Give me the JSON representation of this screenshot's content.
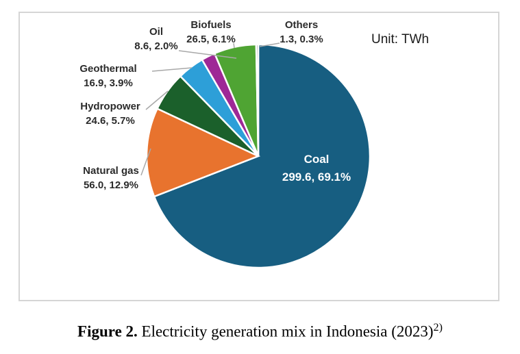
{
  "chart_data": {
    "type": "pie",
    "title": "",
    "unit_label": "Unit: TWh",
    "start_angle_deg": 0,
    "direction": "clockwise",
    "slices": [
      {
        "label": "Coal",
        "value": 299.6,
        "pct": 69.1,
        "display": "299.6, 69.1%",
        "color": "#175E81"
      },
      {
        "label": "Natural gas",
        "value": 56.0,
        "pct": 12.9,
        "display": "56.0, 12.9%",
        "color": "#E8732E"
      },
      {
        "label": "Hydropower",
        "value": 24.6,
        "pct": 5.7,
        "display": "24.6, 5.7%",
        "color": "#1B602B"
      },
      {
        "label": "Geothermal",
        "value": 16.9,
        "pct": 3.9,
        "display": "16.9, 3.9%",
        "color": "#2D9FD8"
      },
      {
        "label": "Oil",
        "value": 8.6,
        "pct": 2.0,
        "display": "8.6, 2.0%",
        "color": "#9E2896"
      },
      {
        "label": "Biofuels",
        "value": 26.5,
        "pct": 6.1,
        "display": "26.5, 6.1%",
        "color": "#4FA433"
      },
      {
        "label": "Others",
        "value": 1.3,
        "pct": 0.3,
        "display": "1.3, 0.3%",
        "color": "#8A8A8A"
      }
    ]
  },
  "caption": {
    "prefix": "Figure 2.",
    "text": " Electricity generation mix in Indonesia (2023)",
    "superscript": "2)"
  }
}
